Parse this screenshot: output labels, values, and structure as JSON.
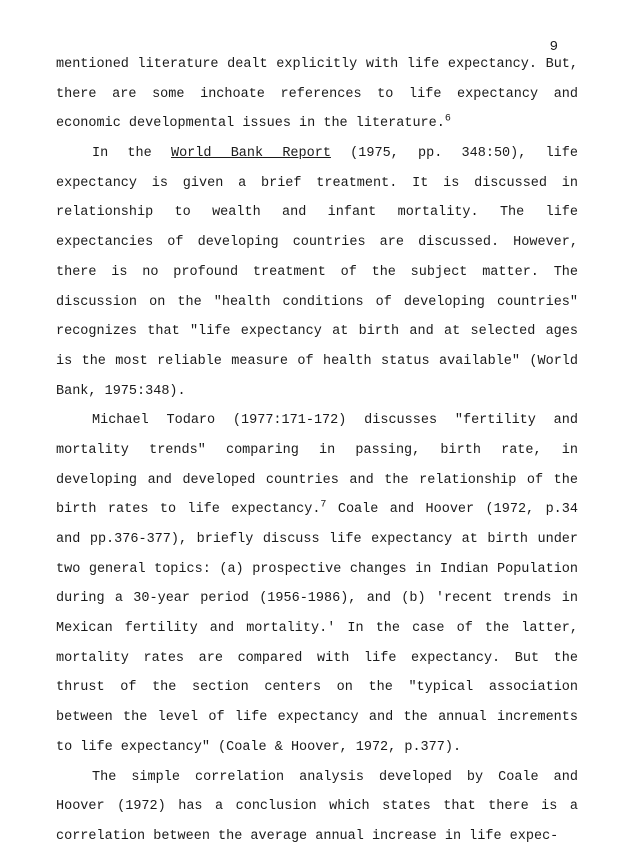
{
  "page_number": "9",
  "paragraphs": {
    "p1": {
      "text": "mentioned literature dealt explicitly with life expectancy. But, there are some inchoate references to life expectancy and economic developmental issues in the literature.",
      "footnote": "6"
    },
    "p2": {
      "pre": "In the ",
      "underlined": "World Bank Report",
      "post": " (1975, pp. 348:50), life expectancy is given a brief treatment.  It is discussed in relationship to wealth and infant mortality.  The life expectancies of developing countries are discussed.  However, there is no profound treatment of the subject matter.  The discussion on the \"health conditions of developing countries\" recognizes that \"life expectancy at birth and at selected ages is the most reliable measure of health status available\" (World Bank, 1975:348)."
    },
    "p3": {
      "pre": "Michael Todaro (1977:171-172) discusses \"fertility and mortality trends\" comparing in passing, birth rate, in developing and developed countries and the relationship of the birth rates to life expectancy.",
      "footnote": "7",
      "post": "  Coale and Hoover (1972, p.34 and pp.376-377), briefly discuss life expectancy at birth under two general topics: (a) prospective changes in Indian Population during a 30-year period (1956-1986), and (b) 'recent trends in Mexican fertility and mortality.'  In the case of the latter, mortality rates are compared with life expectancy. But the thrust of the section centers on the \"typical association between the level of life expectancy and the annual increments to life expectancy\"  (Coale & Hoover, 1972, p.377)."
    },
    "p4": {
      "text": "The simple correlation analysis developed by Coale and Hoover (1972) has a conclusion which states that there is a correlation between the average annual increase in life expec-"
    }
  },
  "typography": {
    "font_family": "Courier New",
    "font_size": 13.5,
    "line_height": 2.2,
    "color": "#1a1a1a",
    "background": "#ffffff"
  }
}
